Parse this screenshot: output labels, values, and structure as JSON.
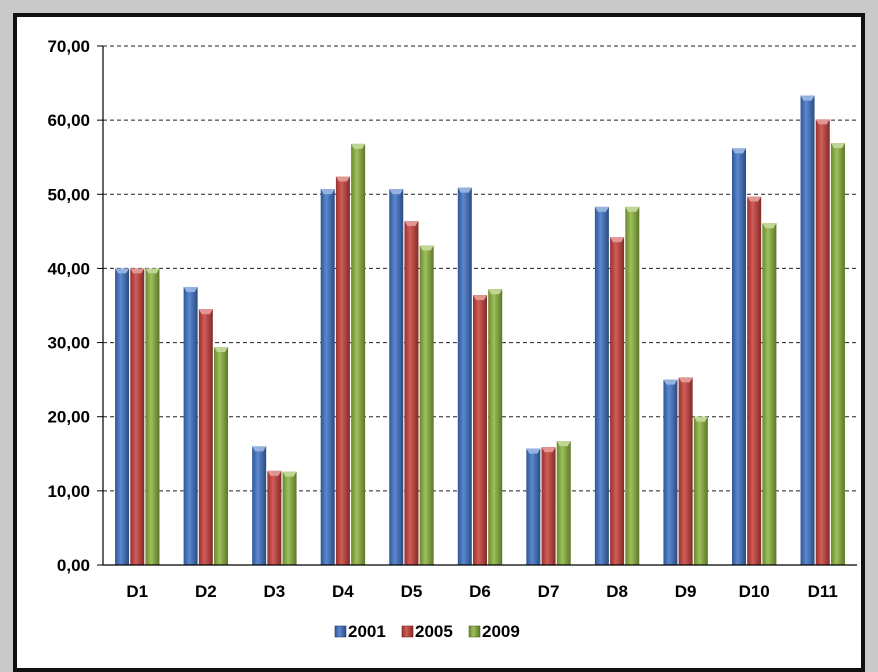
{
  "chart_data": {
    "type": "bar",
    "categories": [
      "D1",
      "D2",
      "D3",
      "D4",
      "D5",
      "D6",
      "D7",
      "D8",
      "D9",
      "D10",
      "D11"
    ],
    "series": [
      {
        "name": "2001",
        "color": "#3f73c8",
        "values": [
          40.0,
          37.5,
          16.0,
          50.7,
          50.7,
          50.9,
          15.7,
          48.3,
          25.0,
          56.2,
          63.3
        ]
      },
      {
        "name": "2005",
        "color": "#c9403c",
        "values": [
          40.0,
          34.5,
          12.7,
          52.4,
          46.4,
          36.4,
          15.9,
          44.2,
          25.3,
          49.7,
          60.1
        ]
      },
      {
        "name": "2009",
        "color": "#8db53e",
        "values": [
          40.0,
          29.4,
          12.6,
          56.8,
          43.1,
          37.2,
          16.7,
          48.3,
          20.0,
          46.1,
          56.9
        ]
      }
    ],
    "ylim": [
      0,
      70
    ],
    "yticks": [
      "0,00",
      "10,00",
      "20,00",
      "30,00",
      "40,00",
      "50,00",
      "60,00",
      "70,00"
    ],
    "grid": true,
    "legend_position": "bottom",
    "title": "",
    "xlabel": "",
    "ylabel": ""
  }
}
